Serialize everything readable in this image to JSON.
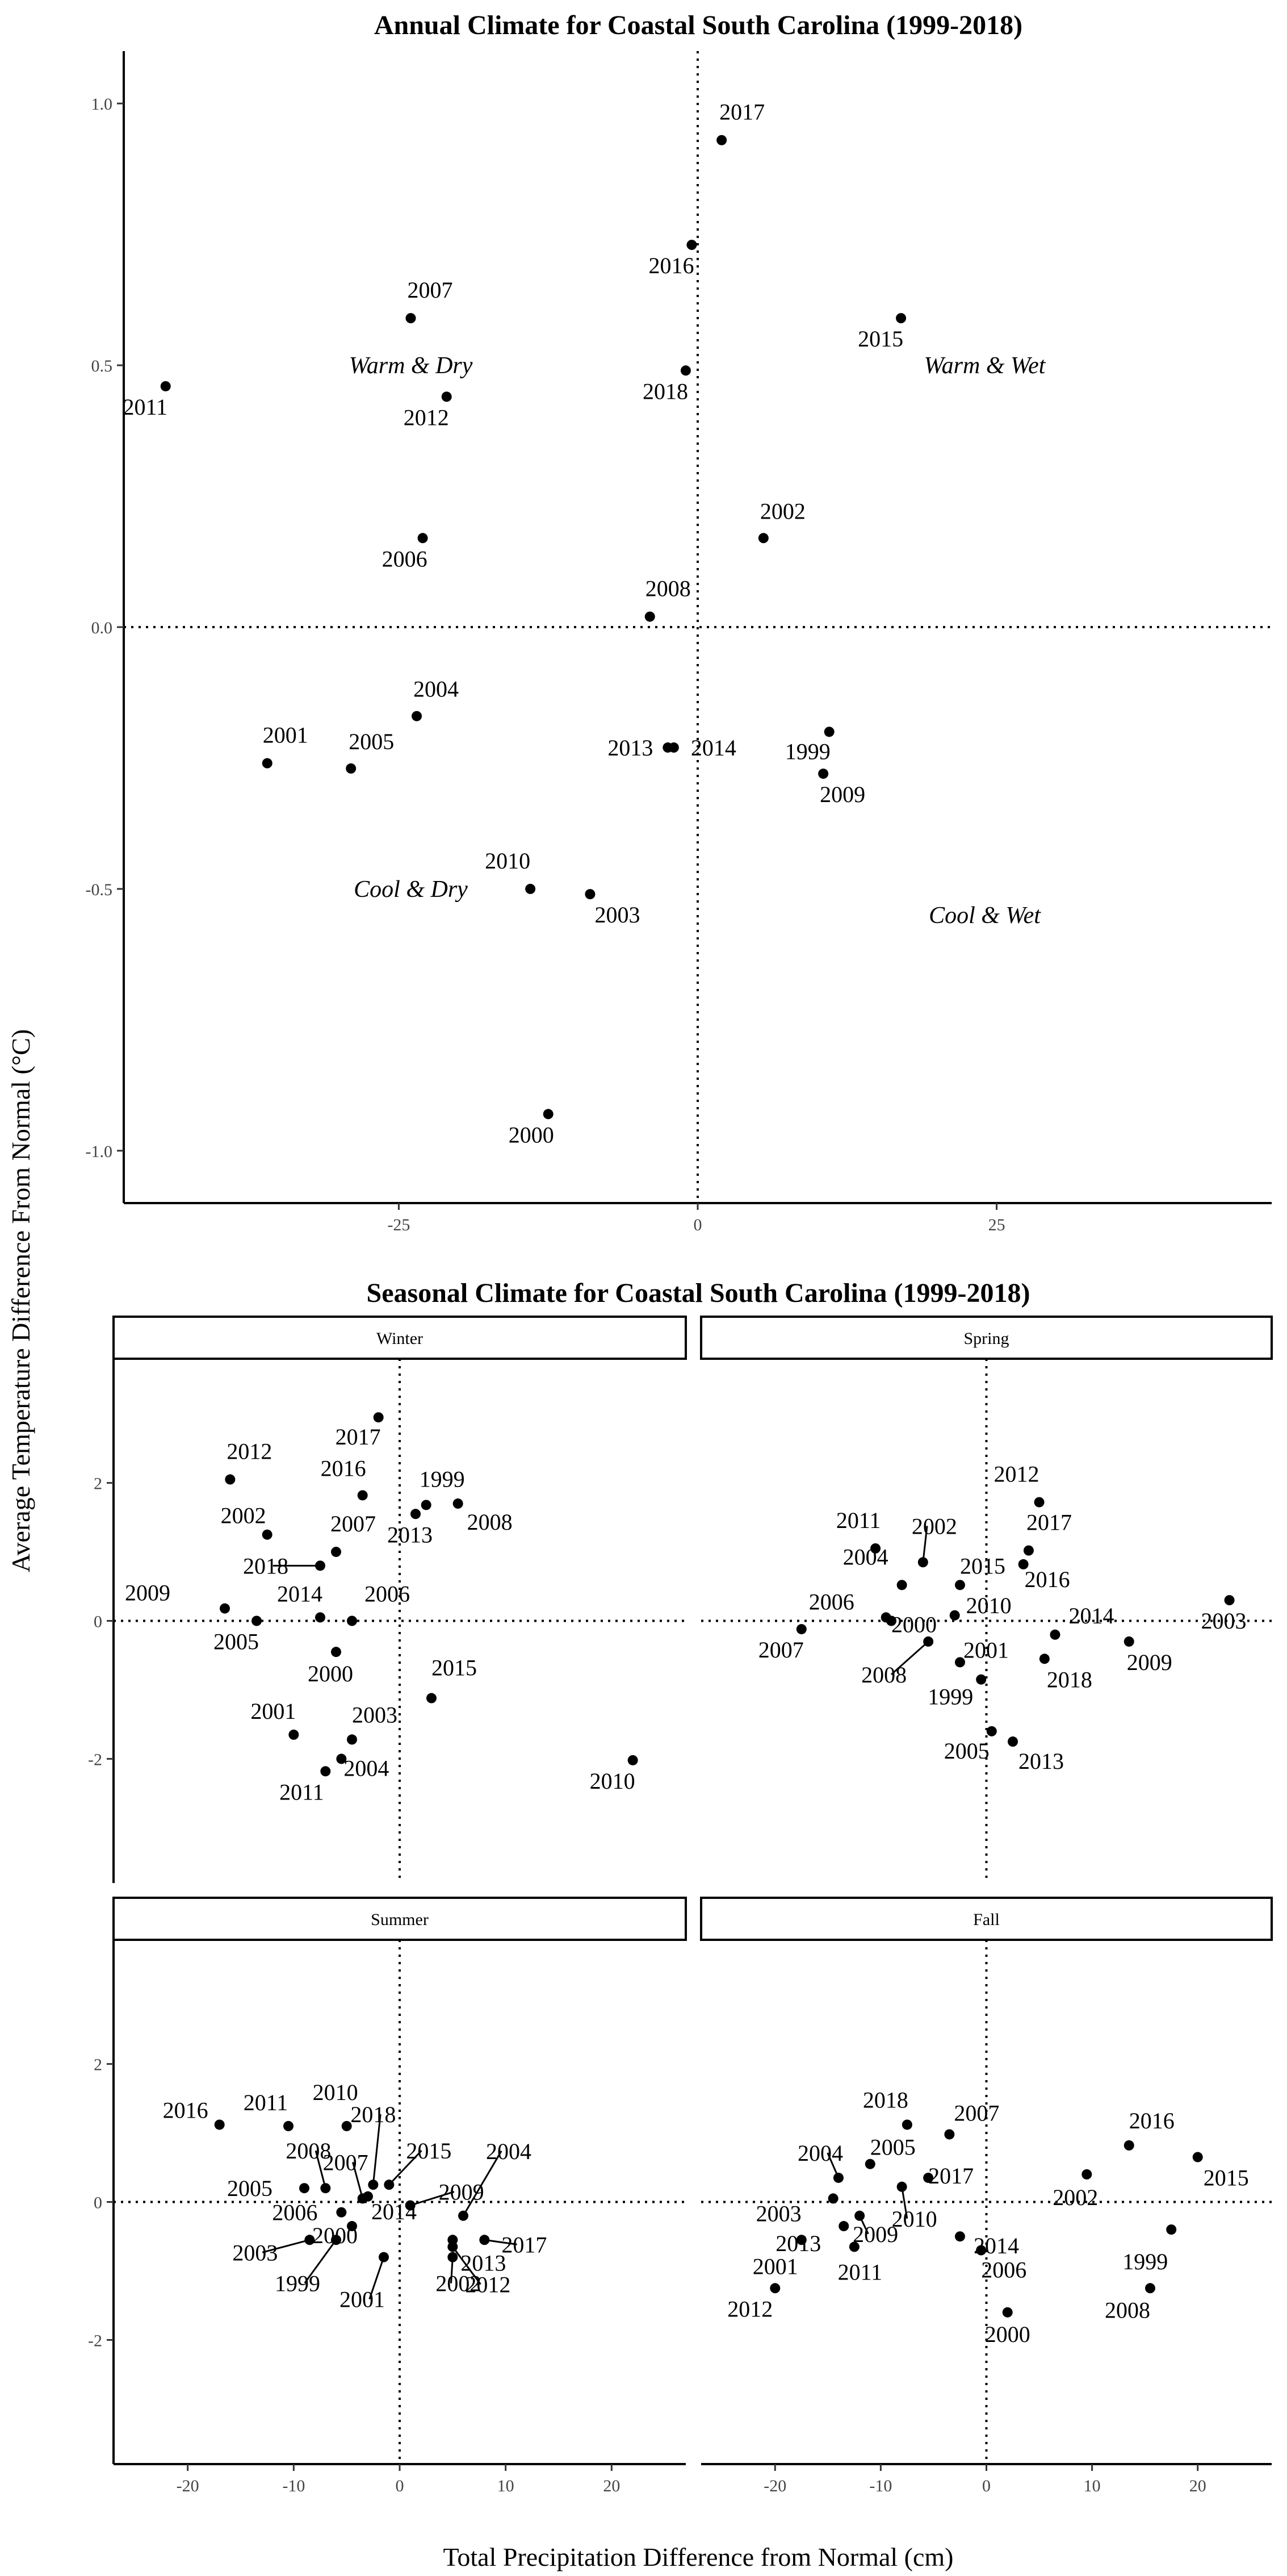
{
  "y_axis_title": "Average Temperature Difference From Normal (°C)",
  "x_axis_title": "Total Precipitation Difference from Normal (cm)",
  "chart_data": [
    {
      "type": "scatter",
      "title": "Annual Climate for Coastal South Carolina (1999-2018)",
      "xlim": [
        -48,
        48
      ],
      "ylim": [
        -1.1,
        1.1
      ],
      "x_ticks": [
        -25,
        0,
        25
      ],
      "x_tick_labels": [
        "-25",
        "0",
        "25"
      ],
      "y_ticks": [
        -1.0,
        -0.5,
        0.0,
        0.5,
        1.0
      ],
      "y_tick_labels": [
        "-1.0",
        "-0.5",
        "0.0",
        "0.5",
        "1.0"
      ],
      "reference_lines": {
        "x": 0,
        "y": 0,
        "style": "dotted"
      },
      "quadrant_labels": [
        {
          "text": "Warm & Dry",
          "x": -24,
          "y": 0.5
        },
        {
          "text": "Warm & Wet",
          "x": 24,
          "y": 0.5
        },
        {
          "text": "Cool & Dry",
          "x": -24,
          "y": -0.5
        },
        {
          "text": "Cool & Wet",
          "x": 24,
          "y": -0.55
        }
      ],
      "points": [
        {
          "label": "1999",
          "x": 11.0,
          "y": -0.2
        },
        {
          "label": "2000",
          "x": -12.5,
          "y": -0.93
        },
        {
          "label": "2001",
          "x": -36.0,
          "y": -0.26
        },
        {
          "label": "2002",
          "x": 5.5,
          "y": 0.17
        },
        {
          "label": "2003",
          "x": -9.0,
          "y": -0.51
        },
        {
          "label": "2004",
          "x": -23.5,
          "y": -0.17
        },
        {
          "label": "2005",
          "x": -29.0,
          "y": -0.27
        },
        {
          "label": "2006",
          "x": -23.0,
          "y": 0.17
        },
        {
          "label": "2007",
          "x": -24.0,
          "y": 0.59
        },
        {
          "label": "2008",
          "x": -4.0,
          "y": 0.02
        },
        {
          "label": "2009",
          "x": 10.5,
          "y": -0.28
        },
        {
          "label": "2010",
          "x": -14.0,
          "y": -0.5
        },
        {
          "label": "2011",
          "x": -44.5,
          "y": 0.46
        },
        {
          "label": "2012",
          "x": -21.0,
          "y": 0.44
        },
        {
          "label": "2013",
          "x": -2.5,
          "y": -0.23
        },
        {
          "label": "2014",
          "x": -2.0,
          "y": -0.23
        },
        {
          "label": "2015",
          "x": 17.0,
          "y": 0.59
        },
        {
          "label": "2016",
          "x": -0.5,
          "y": 0.73
        },
        {
          "label": "2017",
          "x": 2.0,
          "y": 0.93
        },
        {
          "label": "2018",
          "x": -1.0,
          "y": 0.49
        }
      ]
    },
    {
      "type": "scatter",
      "title": "Seasonal Climate for Coastal South Carolina (1999-2018)",
      "facets": [
        {
          "name": "Winter",
          "points": [
            {
              "label": "1999",
              "x": 2.5,
              "y": 1.68
            },
            {
              "label": "2000",
              "x": -6.0,
              "y": -0.45
            },
            {
              "label": "2001",
              "x": -10.0,
              "y": -1.65
            },
            {
              "label": "2002",
              "x": -12.5,
              "y": 1.25
            },
            {
              "label": "2003",
              "x": -4.5,
              "y": -1.72
            },
            {
              "label": "2004",
              "x": -5.5,
              "y": -2.0
            },
            {
              "label": "2005",
              "x": -13.5,
              "y": 0.0
            },
            {
              "label": "2006",
              "x": -4.5,
              "y": 0.0
            },
            {
              "label": "2007",
              "x": -6.0,
              "y": 1.0
            },
            {
              "label": "2008",
              "x": 5.5,
              "y": 1.7
            },
            {
              "label": "2009",
              "x": -16.5,
              "y": 0.18
            },
            {
              "label": "2010",
              "x": 22.0,
              "y": -2.02
            },
            {
              "label": "2011",
              "x": -7.0,
              "y": -2.18
            },
            {
              "label": "2012",
              "x": -16.0,
              "y": 2.05
            },
            {
              "label": "2013",
              "x": 1.5,
              "y": 1.55
            },
            {
              "label": "2014",
              "x": -7.5,
              "y": 0.05
            },
            {
              "label": "2015",
              "x": 3.0,
              "y": -1.12
            },
            {
              "label": "2016",
              "x": -3.5,
              "y": 1.82
            },
            {
              "label": "2017",
              "x": -2.0,
              "y": 2.95
            },
            {
              "label": "2018",
              "x": -7.5,
              "y": 0.8
            }
          ]
        },
        {
          "name": "Spring",
          "points": [
            {
              "label": "1999",
              "x": -0.5,
              "y": -0.85
            },
            {
              "label": "2000",
              "x": -9.0,
              "y": 0.0
            },
            {
              "label": "2001",
              "x": -2.5,
              "y": -0.6
            },
            {
              "label": "2002",
              "x": -6.0,
              "y": 0.85
            },
            {
              "label": "2003",
              "x": 23.0,
              "y": 0.3
            },
            {
              "label": "2004",
              "x": -8.0,
              "y": 0.52
            },
            {
              "label": "2005",
              "x": 0.5,
              "y": -1.6
            },
            {
              "label": "2006",
              "x": -9.5,
              "y": 0.05
            },
            {
              "label": "2007",
              "x": -17.5,
              "y": -0.12
            },
            {
              "label": "2008",
              "x": -5.5,
              "y": -0.3
            },
            {
              "label": "2009",
              "x": 13.5,
              "y": -0.3
            },
            {
              "label": "2010",
              "x": -3.0,
              "y": 0.08
            },
            {
              "label": "2011",
              "x": -10.5,
              "y": 1.05
            },
            {
              "label": "2012",
              "x": 5.0,
              "y": 1.72
            },
            {
              "label": "2013",
              "x": 2.5,
              "y": -1.75
            },
            {
              "label": "2014",
              "x": 6.5,
              "y": -0.2
            },
            {
              "label": "2015",
              "x": -2.5,
              "y": 0.52
            },
            {
              "label": "2016",
              "x": 3.5,
              "y": 0.82
            },
            {
              "label": "2017",
              "x": 4.0,
              "y": 1.02
            },
            {
              "label": "2018",
              "x": 5.5,
              "y": -0.55
            }
          ]
        },
        {
          "name": "Summer",
          "points": [
            {
              "label": "1999",
              "x": -6.0,
              "y": -0.55
            },
            {
              "label": "2000",
              "x": -4.5,
              "y": -0.35
            },
            {
              "label": "2001",
              "x": -1.5,
              "y": -0.8
            },
            {
              "label": "2002",
              "x": 5.0,
              "y": -0.8
            },
            {
              "label": "2003",
              "x": -8.5,
              "y": -0.55
            },
            {
              "label": "2004",
              "x": 6.0,
              "y": -0.2
            },
            {
              "label": "2005",
              "x": -9.0,
              "y": 0.2
            },
            {
              "label": "2006",
              "x": -5.5,
              "y": -0.15
            },
            {
              "label": "2007",
              "x": -3.5,
              "y": 0.05
            },
            {
              "label": "2008",
              "x": -7.0,
              "y": 0.2
            },
            {
              "label": "2009",
              "x": 1.0,
              "y": -0.05
            },
            {
              "label": "2010",
              "x": -5.0,
              "y": 1.1
            },
            {
              "label": "2011",
              "x": -10.5,
              "y": 1.1
            },
            {
              "label": "2012",
              "x": 5.0,
              "y": -0.65
            },
            {
              "label": "2013",
              "x": 5.0,
              "y": -0.55
            },
            {
              "label": "2014",
              "x": -3.0,
              "y": 0.08
            },
            {
              "label": "2015",
              "x": -1.0,
              "y": 0.25
            },
            {
              "label": "2016",
              "x": -17.0,
              "y": 1.12
            },
            {
              "label": "2017",
              "x": 8.0,
              "y": -0.55
            },
            {
              "label": "2018",
              "x": -2.5,
              "y": 0.25
            }
          ]
        },
        {
          "name": "Fall",
          "points": [
            {
              "label": "1999",
              "x": 17.5,
              "y": -0.4
            },
            {
              "label": "2000",
              "x": 2.0,
              "y": -1.6
            },
            {
              "label": "2001",
              "x": -17.5,
              "y": -0.55
            },
            {
              "label": "2002",
              "x": 9.5,
              "y": 0.4
            },
            {
              "label": "2003",
              "x": -14.5,
              "y": 0.05
            },
            {
              "label": "2004",
              "x": -14.0,
              "y": 0.35
            },
            {
              "label": "2005",
              "x": -11.0,
              "y": 0.55
            },
            {
              "label": "2006",
              "x": -0.5,
              "y": -0.7
            },
            {
              "label": "2007",
              "x": -3.5,
              "y": 0.98
            },
            {
              "label": "2008",
              "x": 15.5,
              "y": -1.25
            },
            {
              "label": "2009",
              "x": -12.0,
              "y": -0.2
            },
            {
              "label": "2010",
              "x": -8.0,
              "y": 0.22
            },
            {
              "label": "2011",
              "x": -12.5,
              "y": -0.65
            },
            {
              "label": "2012",
              "x": -20.0,
              "y": -1.25
            },
            {
              "label": "2013",
              "x": -13.5,
              "y": -0.35
            },
            {
              "label": "2014",
              "x": -2.5,
              "y": -0.5
            },
            {
              "label": "2015",
              "x": 20.0,
              "y": 0.65
            },
            {
              "label": "2016",
              "x": 13.5,
              "y": 0.82
            },
            {
              "label": "2017",
              "x": -5.5,
              "y": 0.35
            },
            {
              "label": "2018",
              "x": -7.5,
              "y": 1.12
            }
          ]
        }
      ],
      "xlim": [
        -27,
        27
      ],
      "ylim": [
        -3.8,
        3.8
      ],
      "x_ticks": [
        -20,
        -10,
        0,
        10,
        20
      ],
      "x_tick_labels": [
        "-20",
        "-10",
        "0",
        "10",
        "20"
      ],
      "y_ticks": [
        -2,
        0,
        2
      ],
      "y_tick_labels": [
        "-2",
        "0",
        "2"
      ],
      "reference_lines": {
        "x": 0,
        "y": 0,
        "style": "dotted"
      }
    }
  ]
}
